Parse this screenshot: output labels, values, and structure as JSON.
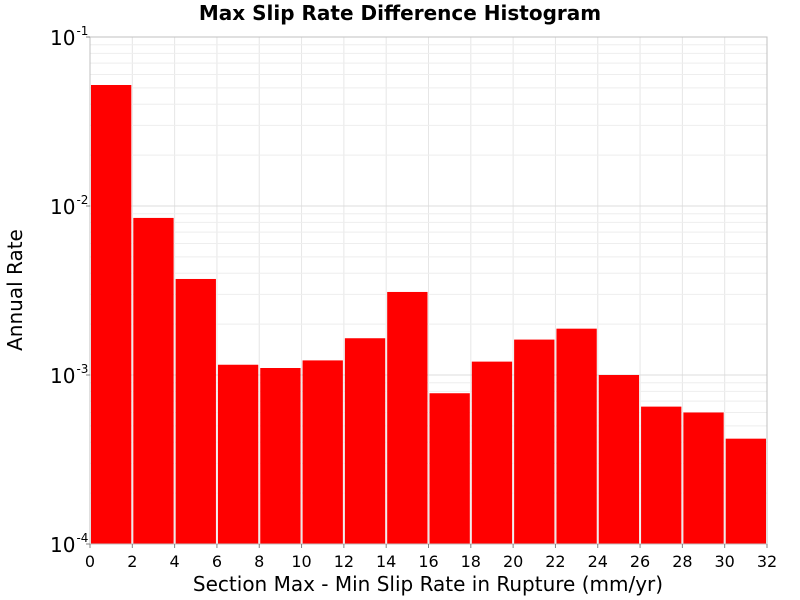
{
  "chart_data": {
    "type": "bar",
    "title": "Max Slip Rate Difference Histogram",
    "xlabel": "Section Max - Min Slip Rate in Rupture (mm/yr)",
    "ylabel": "Annual Rate",
    "y_scale": "log",
    "xlim": [
      0,
      32
    ],
    "ylim": [
      0.0001,
      0.1
    ],
    "grid": true,
    "bar_color": "#ff0000",
    "x_ticks": [
      0,
      2,
      4,
      6,
      8,
      10,
      12,
      14,
      16,
      18,
      20,
      22,
      24,
      26,
      28,
      30,
      32
    ],
    "x_tick_labels": [
      "0",
      "2",
      "4",
      "6",
      "8",
      "10",
      "12",
      "14",
      "16",
      "18",
      "20",
      "22",
      "24",
      "26",
      "28",
      "30",
      "32"
    ],
    "y_ticks": [
      0.1,
      0.01,
      0.001,
      0.0001
    ],
    "y_tick_labels": [
      {
        "base": "10",
        "exp": "-1"
      },
      {
        "base": "10",
        "exp": "-2"
      },
      {
        "base": "10",
        "exp": "-3"
      },
      {
        "base": "10",
        "exp": "-4"
      }
    ],
    "bins": [
      {
        "x0": 0,
        "x1": 2,
        "value": 0.052
      },
      {
        "x0": 2,
        "x1": 4,
        "value": 0.0085
      },
      {
        "x0": 4,
        "x1": 6,
        "value": 0.0037
      },
      {
        "x0": 6,
        "x1": 8,
        "value": 0.00115
      },
      {
        "x0": 8,
        "x1": 10,
        "value": 0.0011
      },
      {
        "x0": 10,
        "x1": 12,
        "value": 0.00122
      },
      {
        "x0": 12,
        "x1": 14,
        "value": 0.00165
      },
      {
        "x0": 14,
        "x1": 16,
        "value": 0.0031
      },
      {
        "x0": 16,
        "x1": 18,
        "value": 0.00078
      },
      {
        "x0": 18,
        "x1": 20,
        "value": 0.0012
      },
      {
        "x0": 20,
        "x1": 22,
        "value": 0.00162
      },
      {
        "x0": 22,
        "x1": 24,
        "value": 0.00188
      },
      {
        "x0": 24,
        "x1": 26,
        "value": 0.001
      },
      {
        "x0": 26,
        "x1": 28,
        "value": 0.00065
      },
      {
        "x0": 28,
        "x1": 30,
        "value": 0.0006
      },
      {
        "x0": 30,
        "x1": 32,
        "value": 0.00042
      }
    ]
  }
}
